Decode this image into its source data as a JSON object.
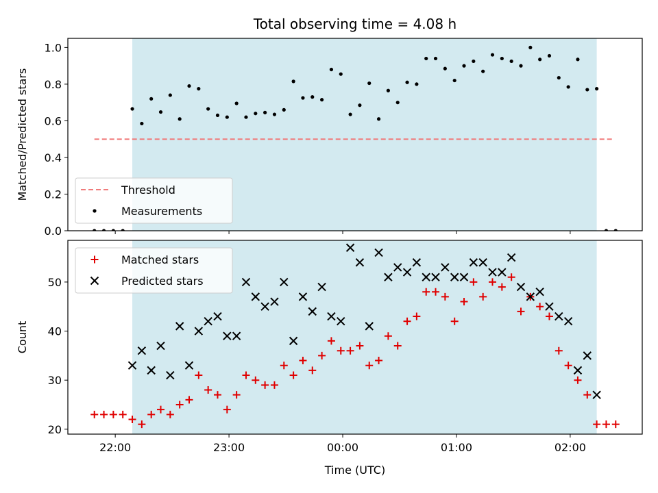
{
  "title": "Total observing time = 4.08 h",
  "colors": {
    "band": "#d3eaf0",
    "threshold": "#f07b7b",
    "measurements": "#000000",
    "matched": "#e00000",
    "predicted": "#000000"
  },
  "chart_data": [
    {
      "type": "scatter",
      "ylabel": "Matched/Predicted stars",
      "ylim": [
        0,
        1.05
      ],
      "yticks": [
        0.0,
        0.2,
        0.4,
        0.6,
        0.8,
        1.0
      ],
      "ytick_labels": [
        "0.0",
        "0.2",
        "0.4",
        "0.6",
        "0.8",
        "1.0"
      ],
      "xlim": [
        "21:35",
        "02:38"
      ],
      "shaded_region": [
        "22:09",
        "02:14"
      ],
      "legend": {
        "placement": "lower-left",
        "entries": [
          "Threshold",
          "Measurements"
        ]
      },
      "threshold": {
        "name": "Threshold",
        "y": 0.5,
        "x_range": [
          "21:49",
          "02:22"
        ],
        "style": "dashed"
      },
      "series": [
        {
          "name": "Measurements",
          "marker": "dot",
          "x": [
            "21:49",
            "21:54",
            "21:59",
            "22:04",
            "22:09",
            "22:14",
            "22:19",
            "22:24",
            "22:29",
            "22:34",
            "22:39",
            "22:44",
            "22:49",
            "22:54",
            "22:59",
            "23:04",
            "23:09",
            "23:14",
            "23:19",
            "23:24",
            "23:29",
            "23:34",
            "23:39",
            "23:44",
            "23:49",
            "23:54",
            "23:59",
            "00:04",
            "00:09",
            "00:14",
            "00:19",
            "00:24",
            "00:29",
            "00:34",
            "00:39",
            "00:44",
            "00:49",
            "00:54",
            "00:59",
            "01:04",
            "01:09",
            "01:14",
            "01:19",
            "01:24",
            "01:29",
            "01:34",
            "01:39",
            "01:44",
            "01:49",
            "01:54",
            "01:59",
            "02:04",
            "02:09",
            "02:14",
            "02:19",
            "02:24"
          ],
          "y": [
            0.0,
            0.0,
            0.0,
            0.0,
            0.665,
            0.585,
            0.72,
            0.648,
            0.74,
            0.61,
            0.79,
            0.775,
            0.665,
            0.63,
            0.62,
            0.695,
            0.62,
            0.64,
            0.645,
            0.635,
            0.66,
            0.815,
            0.725,
            0.73,
            0.715,
            0.88,
            0.855,
            0.635,
            0.685,
            0.805,
            0.61,
            0.765,
            0.7,
            0.81,
            0.8,
            0.94,
            0.94,
            0.885,
            0.82,
            0.9,
            0.925,
            0.87,
            0.96,
            0.94,
            0.925,
            0.9,
            1.0,
            0.935,
            0.955,
            0.835,
            0.785,
            0.935,
            0.77,
            0.775,
            0.0,
            0.0
          ]
        }
      ]
    },
    {
      "type": "scatter",
      "xlabel": "Time (UTC)",
      "ylabel": "Count",
      "ylim": [
        19,
        58.5
      ],
      "yticks": [
        20,
        30,
        40,
        50
      ],
      "ytick_labels": [
        "20",
        "30",
        "40",
        "50"
      ],
      "xlim": [
        "21:35",
        "02:38"
      ],
      "xticks": [
        "22:00",
        "23:00",
        "00:00",
        "01:00",
        "02:00"
      ],
      "shaded_region": [
        "22:09",
        "02:14"
      ],
      "legend": {
        "placement": "upper-left",
        "entries": [
          "Matched stars",
          "Predicted stars"
        ]
      },
      "series": [
        {
          "name": "Matched stars",
          "marker": "plus",
          "x": [
            "21:49",
            "21:54",
            "21:59",
            "22:04",
            "22:09",
            "22:14",
            "22:19",
            "22:24",
            "22:29",
            "22:34",
            "22:39",
            "22:44",
            "22:49",
            "22:54",
            "22:59",
            "23:04",
            "23:09",
            "23:14",
            "23:19",
            "23:24",
            "23:29",
            "23:34",
            "23:39",
            "23:44",
            "23:49",
            "23:54",
            "23:59",
            "00:04",
            "00:09",
            "00:14",
            "00:19",
            "00:24",
            "00:29",
            "00:34",
            "00:39",
            "00:44",
            "00:49",
            "00:54",
            "00:59",
            "01:04",
            "01:09",
            "01:14",
            "01:19",
            "01:24",
            "01:29",
            "01:34",
            "01:39",
            "01:44",
            "01:49",
            "01:54",
            "01:59",
            "02:04",
            "02:09",
            "02:14",
            "02:19",
            "02:24"
          ],
          "y": [
            23,
            23,
            23,
            23,
            22,
            21,
            23,
            24,
            23,
            25,
            26,
            31,
            28,
            27,
            24,
            27,
            31,
            30,
            29,
            29,
            33,
            31,
            34,
            32,
            35,
            38,
            36,
            36,
            37,
            33,
            34,
            39,
            37,
            42,
            43,
            48,
            48,
            47,
            42,
            46,
            50,
            47,
            50,
            49,
            51,
            44,
            47,
            45,
            43,
            36,
            33,
            30,
            27,
            21,
            21,
            21
          ]
        },
        {
          "name": "Predicted stars",
          "marker": "x",
          "x": [
            "22:09",
            "22:14",
            "22:19",
            "22:24",
            "22:29",
            "22:34",
            "22:39",
            "22:44",
            "22:49",
            "22:54",
            "22:59",
            "23:04",
            "23:09",
            "23:14",
            "23:19",
            "23:24",
            "23:29",
            "23:34",
            "23:39",
            "23:44",
            "23:49",
            "23:54",
            "23:59",
            "00:04",
            "00:09",
            "00:14",
            "00:19",
            "00:24",
            "00:29",
            "00:34",
            "00:39",
            "00:44",
            "00:49",
            "00:54",
            "00:59",
            "01:04",
            "01:09",
            "01:14",
            "01:19",
            "01:24",
            "01:29",
            "01:34",
            "01:39",
            "01:44",
            "01:49",
            "01:54",
            "01:59",
            "02:04",
            "02:09",
            "02:14"
          ],
          "y": [
            33,
            36,
            32,
            37,
            31,
            41,
            33,
            40,
            42,
            43,
            39,
            39,
            50,
            47,
            45,
            46,
            50,
            38,
            47,
            44,
            49,
            43,
            42,
            57,
            54,
            41,
            56,
            51,
            53,
            52,
            54,
            51,
            51,
            53,
            51,
            51,
            54,
            54,
            52,
            52,
            55,
            49,
            47,
            48,
            45,
            43,
            42,
            32,
            35,
            27
          ]
        }
      ]
    }
  ]
}
